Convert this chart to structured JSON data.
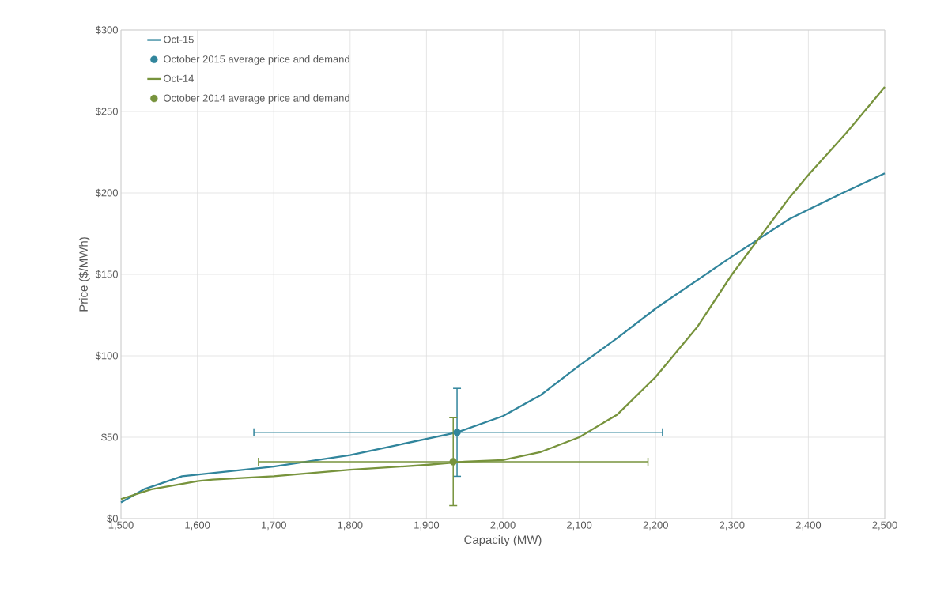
{
  "chart_data": {
    "type": "line",
    "xlabel": "Capacity (MW)",
    "ylabel": "Price ($/MWh)",
    "xlim": [
      1500,
      2500
    ],
    "ylim": [
      0,
      300
    ],
    "xticks": [
      {
        "value": 1500,
        "label": "1,500"
      },
      {
        "value": 1600,
        "label": "1,600"
      },
      {
        "value": 1700,
        "label": "1,700"
      },
      {
        "value": 1800,
        "label": "1,800"
      },
      {
        "value": 1900,
        "label": "1,900"
      },
      {
        "value": 2000,
        "label": "2,000"
      },
      {
        "value": 2100,
        "label": "2,100"
      },
      {
        "value": 2200,
        "label": "2,200"
      },
      {
        "value": 2300,
        "label": "2,300"
      },
      {
        "value": 2400,
        "label": "2,400"
      },
      {
        "value": 2500,
        "label": "2,500"
      }
    ],
    "yticks": [
      {
        "value": 0,
        "label": "$0"
      },
      {
        "value": 50,
        "label": "$50"
      },
      {
        "value": 100,
        "label": "$100"
      },
      {
        "value": 150,
        "label": "$150"
      },
      {
        "value": 200,
        "label": "$200"
      },
      {
        "value": 250,
        "label": "$250"
      },
      {
        "value": 300,
        "label": "$300"
      }
    ],
    "grid": true,
    "legend": "top left",
    "series": [
      {
        "name": "Oct-15",
        "marker": "none",
        "color": "#31859c",
        "x": [
          1500,
          1530,
          1580,
          1600,
          1700,
          1800,
          1860,
          1940,
          2000,
          2050,
          2100,
          2150,
          2200,
          2250,
          2300,
          2375,
          2445,
          2500
        ],
        "values": [
          10,
          18,
          26,
          27,
          32,
          39,
          45,
          53,
          63,
          76,
          94,
          111,
          129,
          145,
          161,
          184,
          200,
          212
        ]
      },
      {
        "name": "October 2015 average price and demand",
        "type": "scatter",
        "marker": "circle",
        "color": "#31859c",
        "x": [
          1940
        ],
        "values": [
          53
        ],
        "errors": [
          [
            26,
            80
          ]
        ],
        "xerrors": [
          [
            1674,
            2209
          ]
        ]
      },
      {
        "name": "Oct-14",
        "marker": "none",
        "color": "#77933c",
        "x": [
          1500,
          1540,
          1600,
          1620,
          1700,
          1800,
          1900,
          1950,
          2000,
          2050,
          2100,
          2150,
          2200,
          2255,
          2300,
          2375,
          2400,
          2450,
          2500
        ],
        "values": [
          12,
          18,
          23,
          24,
          26,
          30,
          33,
          35,
          36,
          41,
          50,
          64,
          87,
          118,
          150,
          197,
          211,
          237,
          265
        ]
      },
      {
        "name": "October 2014 average price and demand",
        "type": "scatter",
        "marker": "circle",
        "color": "#77933c",
        "x": [
          1935
        ],
        "values": [
          35
        ],
        "errors": [
          [
            8,
            62
          ]
        ],
        "xerrors": [
          [
            1680,
            2190
          ]
        ]
      }
    ]
  }
}
